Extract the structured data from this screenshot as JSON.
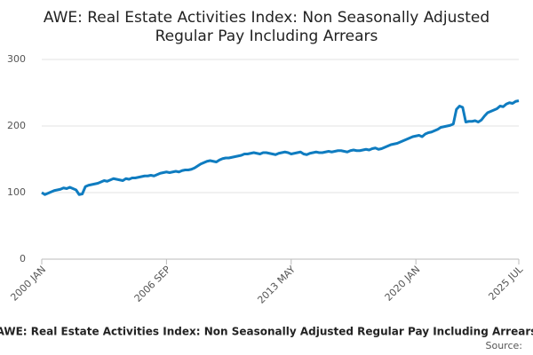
{
  "chart_data": {
    "type": "line",
    "title": "AWE: Real Estate Activities Index: Non Seasonally Adjusted Regular Pay Including Arrears",
    "caption": "AWE: Real Estate Activities Index: Non Seasonally Adjusted Regular Pay Including Arrears",
    "source": "Source:",
    "categories": [
      "2000 JAN",
      null,
      null,
      null,
      null,
      null,
      null,
      null,
      null,
      null,
      null,
      null,
      null,
      null,
      null,
      null,
      null,
      null,
      null,
      null,
      null,
      null,
      null,
      null,
      null,
      null,
      null,
      null,
      null,
      null,
      null,
      null,
      null,
      null,
      null,
      null,
      null,
      null,
      null,
      null,
      "2006 SEP",
      null,
      null,
      null,
      null,
      null,
      null,
      null,
      null,
      null,
      null,
      null,
      null,
      null,
      null,
      null,
      null,
      null,
      null,
      null,
      null,
      null,
      null,
      null,
      null,
      null,
      null,
      null,
      null,
      null,
      null,
      null,
      null,
      null,
      null,
      null,
      null,
      null,
      null,
      null,
      "2013 MAY",
      null,
      null,
      null,
      null,
      null,
      null,
      null,
      null,
      null,
      null,
      null,
      null,
      null,
      null,
      null,
      null,
      null,
      null,
      null,
      null,
      null,
      null,
      null,
      null,
      null,
      null,
      null,
      null,
      null,
      null,
      null,
      null,
      null,
      null,
      null,
      null,
      null,
      null,
      null,
      "2020 JAN",
      null,
      null,
      null,
      null,
      null,
      null,
      null,
      null,
      null,
      null,
      null,
      null,
      null,
      null,
      null,
      null,
      null,
      null,
      null,
      null,
      null,
      null,
      null,
      null,
      null,
      null,
      null,
      null,
      null,
      null,
      null,
      null,
      "2025 JUL"
    ],
    "series": [
      {
        "name": "AWE: Real Estate Activities Index: Non Seasonally Adjusted Regular Pay Including Arrears",
        "color": "#0f7cc0",
        "values": [
          100,
          97,
          99,
          101,
          103,
          104,
          105,
          107,
          106,
          108,
          106,
          104,
          97,
          98,
          109,
          111,
          112,
          113,
          114,
          116,
          118,
          117,
          119,
          121,
          120,
          119,
          118,
          121,
          120,
          122,
          122,
          123,
          124,
          125,
          125,
          126,
          125,
          127,
          129,
          130,
          131,
          130,
          131,
          132,
          131,
          133,
          134,
          134,
          135,
          137,
          140,
          143,
          145,
          147,
          148,
          147,
          146,
          149,
          151,
          152,
          152,
          153,
          154,
          155,
          156,
          158,
          158,
          159,
          160,
          159,
          158,
          160,
          160,
          159,
          158,
          157,
          159,
          160,
          161,
          160,
          158,
          159,
          160,
          161,
          158,
          157,
          159,
          160,
          161,
          160,
          160,
          161,
          162,
          161,
          162,
          163,
          163,
          162,
          161,
          163,
          164,
          163,
          163,
          164,
          165,
          164,
          166,
          167,
          165,
          166,
          168,
          170,
          172,
          173,
          174,
          176,
          178,
          180,
          182,
          184,
          185,
          186,
          184,
          188,
          190,
          191,
          193,
          195,
          198,
          199,
          200,
          201,
          203,
          225,
          230,
          228,
          206,
          207,
          207,
          208,
          206,
          209,
          215,
          220,
          222,
          224,
          226,
          230,
          229,
          233,
          235,
          234,
          237,
          238
        ]
      }
    ],
    "ylim": [
      0,
      300
    ],
    "yticks": [
      0,
      100,
      200,
      300
    ],
    "grid": true
  }
}
